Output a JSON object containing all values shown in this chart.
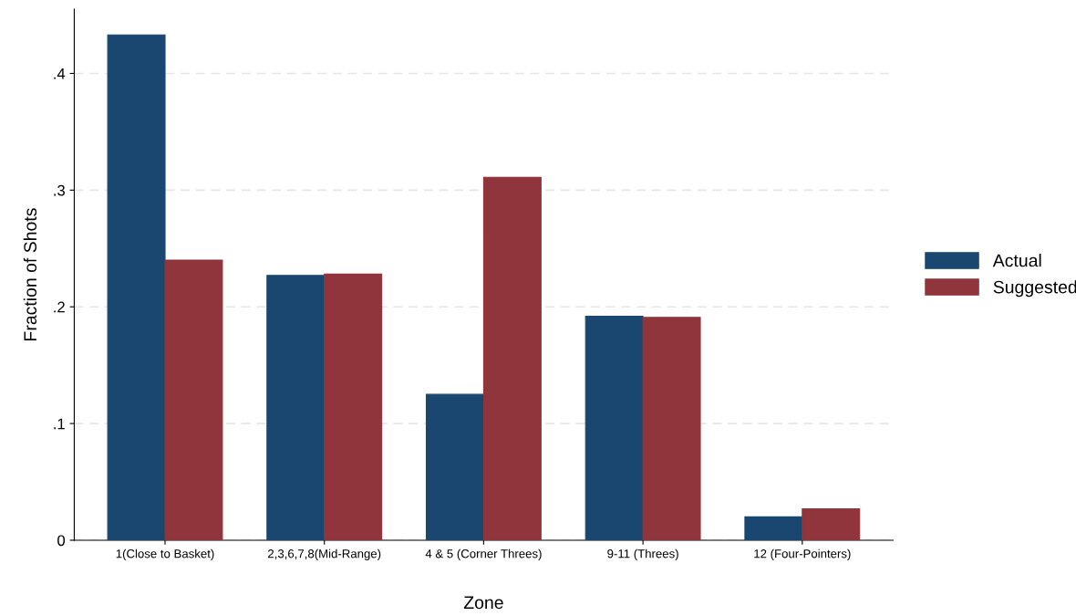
{
  "chart_data": {
    "type": "bar",
    "xlabel": "Zone",
    "ylabel": "Fraction of Shots",
    "categories": [
      "1(Close to Basket)",
      "2,3,6,7,8(Mid-Range)",
      "4 & 5 (Corner Threes)",
      "9-11 (Threes)",
      "12 (Four-Pointers)"
    ],
    "series": [
      {
        "name": "Actual",
        "color": "#1a476f",
        "values": [
          0.433,
          0.227,
          0.125,
          0.192,
          0.02
        ]
      },
      {
        "name": "Suggested",
        "color": "#90353b",
        "values": [
          0.24,
          0.228,
          0.311,
          0.191,
          0.027
        ]
      }
    ],
    "ylim": [
      0,
      0.455
    ],
    "yticks": [
      0,
      {
        "value": 0.1,
        "label": ".1"
      },
      {
        "value": 0.2,
        "label": ".2"
      },
      {
        "value": 0.3,
        "label": ".3"
      },
      {
        "value": 0.4,
        "label": ".4"
      }
    ],
    "grid": "y",
    "legend": "right"
  }
}
